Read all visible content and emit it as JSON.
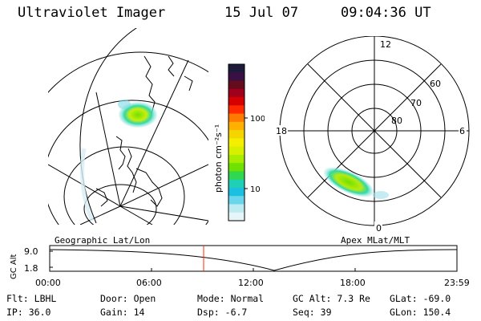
{
  "header": {
    "instrument": "Ultraviolet Imager",
    "date": "15 Jul 07",
    "time": "09:04:36 UT"
  },
  "left_map": {
    "label": "Geographic Lat/Lon"
  },
  "colorbar": {
    "label": "photon cm⁻²s⁻¹",
    "ticks": [
      "100",
      "10"
    ],
    "colors": [
      "#1c1c3a",
      "#3a0f44",
      "#640b1e",
      "#a1001c",
      "#d60000",
      "#ff2a00",
      "#ff7a00",
      "#ffb000",
      "#f6d400",
      "#f4ee00",
      "#d8f000",
      "#a8ec00",
      "#6ee200",
      "#2fd84f",
      "#1fd0b4",
      "#1bbfe0",
      "#6ad6ec",
      "#bdebf2",
      "#e6f5f8"
    ]
  },
  "right_map": {
    "label": "Apex MLat/MLT",
    "mlt_labels": {
      "top": "12",
      "bottom": "0",
      "left": "18",
      "right": "6"
    },
    "lat_labels": [
      "60",
      "70",
      "80"
    ]
  },
  "altitude_plot": {
    "ylabel": "GC Alt",
    "yticks": [
      "9.0",
      "1.8"
    ],
    "xticks": [
      "00:00",
      "06:00",
      "12:00",
      "18:00",
      "23:59"
    ]
  },
  "info": {
    "row1": [
      {
        "key": "Flt:",
        "value": "LBHL"
      },
      {
        "key": "Door:",
        "value": "Open"
      },
      {
        "key": "Mode:",
        "value": "Normal"
      },
      {
        "key": "GC Alt:",
        "value": "7.3 Re"
      },
      {
        "key": "GLat:",
        "value": "-69.0"
      }
    ],
    "row2": [
      {
        "key": "IP:",
        "value": "36.0"
      },
      {
        "key": "Gain:",
        "value": "14"
      },
      {
        "key": "Dsp:",
        "value": "-6.7"
      },
      {
        "key": "Seq:",
        "value": "39"
      },
      {
        "key": "GLon:",
        "value": "150.4"
      }
    ]
  }
}
